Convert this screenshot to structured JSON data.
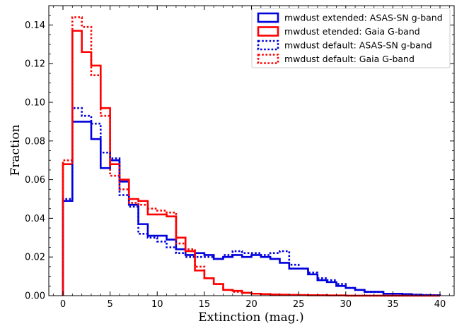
{
  "chart_data": {
    "type": "step-histogram",
    "title": "",
    "xlabel": "Extinction (mag.)",
    "ylabel": "Fraction",
    "xlim": [
      -1.5,
      41.5
    ],
    "ylim": [
      0,
      0.15
    ],
    "xticks": [
      0,
      5,
      10,
      15,
      20,
      25,
      30,
      35,
      40
    ],
    "yticks": [
      0.0,
      0.02,
      0.04,
      0.06,
      0.08,
      0.1,
      0.12,
      0.14
    ],
    "xtick_labels": [
      "0",
      "5",
      "10",
      "15",
      "20",
      "25",
      "30",
      "35",
      "40"
    ],
    "ytick_labels": [
      "0.00",
      "0.02",
      "0.04",
      "0.06",
      "0.08",
      "0.10",
      "0.12",
      "0.14"
    ],
    "bin_edges": [
      0,
      1,
      2,
      3,
      4,
      5,
      6,
      7,
      8,
      9,
      10,
      11,
      12,
      13,
      14,
      15,
      16,
      17,
      18,
      19,
      20,
      21,
      22,
      23,
      24,
      25,
      26,
      27,
      28,
      29,
      30,
      31,
      32,
      33,
      34,
      35,
      36,
      37,
      38,
      39,
      40
    ],
    "grid": false,
    "legend_position": "top-right",
    "series": [
      {
        "name": "mwdust extended: ASAS-SN g-band",
        "color": "#0000dd",
        "style": "solid",
        "values": [
          0.049,
          0.09,
          0.09,
          0.081,
          0.066,
          0.07,
          0.059,
          0.047,
          0.037,
          0.031,
          0.031,
          0.029,
          0.024,
          0.021,
          0.022,
          0.021,
          0.019,
          0.02,
          0.021,
          0.02,
          0.021,
          0.02,
          0.019,
          0.017,
          0.014,
          0.014,
          0.011,
          0.008,
          0.007,
          0.005,
          0.004,
          0.003,
          0.002,
          0.002,
          0.001,
          0.001,
          0.0008,
          0.0005,
          0.0003,
          0.0002
        ]
      },
      {
        "name": "mwdust etended: Gaia G-band",
        "color": "#ff0000",
        "style": "solid",
        "values": [
          0.068,
          0.137,
          0.126,
          0.119,
          0.097,
          0.068,
          0.06,
          0.05,
          0.049,
          0.042,
          0.042,
          0.041,
          0.03,
          0.023,
          0.013,
          0.009,
          0.006,
          0.003,
          0.0025,
          0.0015,
          0.001,
          0.0008,
          0.0006,
          0.0005,
          0.0004,
          0.0003,
          0.0002,
          0.0002,
          0.0001,
          0.0001,
          0,
          0,
          0,
          0,
          0,
          0,
          0,
          0,
          0,
          0
        ]
      },
      {
        "name": "mwdust default: ASAS-SN g-band",
        "color": "#0000dd",
        "style": "dotted",
        "values": [
          0.05,
          0.097,
          0.093,
          0.089,
          0.074,
          0.071,
          0.052,
          0.046,
          0.032,
          0.03,
          0.028,
          0.025,
          0.022,
          0.02,
          0.02,
          0.02,
          0.019,
          0.021,
          0.023,
          0.022,
          0.022,
          0.021,
          0.022,
          0.023,
          0.016,
          0.014,
          0.012,
          0.009,
          0.008,
          0.006,
          0.004,
          0.003,
          0.002,
          0.002,
          0.001,
          0.001,
          0.0008,
          0.0005,
          0.0003,
          0.0002
        ]
      },
      {
        "name": "mwdust default: Gaia G-band",
        "color": "#ff0000",
        "style": "dotted",
        "values": [
          0.07,
          0.144,
          0.139,
          0.114,
          0.093,
          0.062,
          0.055,
          0.048,
          0.047,
          0.045,
          0.044,
          0.043,
          0.027,
          0.024,
          0.015,
          0.009,
          0.006,
          0.003,
          0.002,
          0.0015,
          0.001,
          0.0008,
          0.0006,
          0.0005,
          0.0004,
          0.0003,
          0.0002,
          0.0002,
          0.0001,
          0.0001,
          0,
          0,
          0,
          0,
          0,
          0,
          0,
          0,
          0,
          0
        ]
      }
    ]
  }
}
